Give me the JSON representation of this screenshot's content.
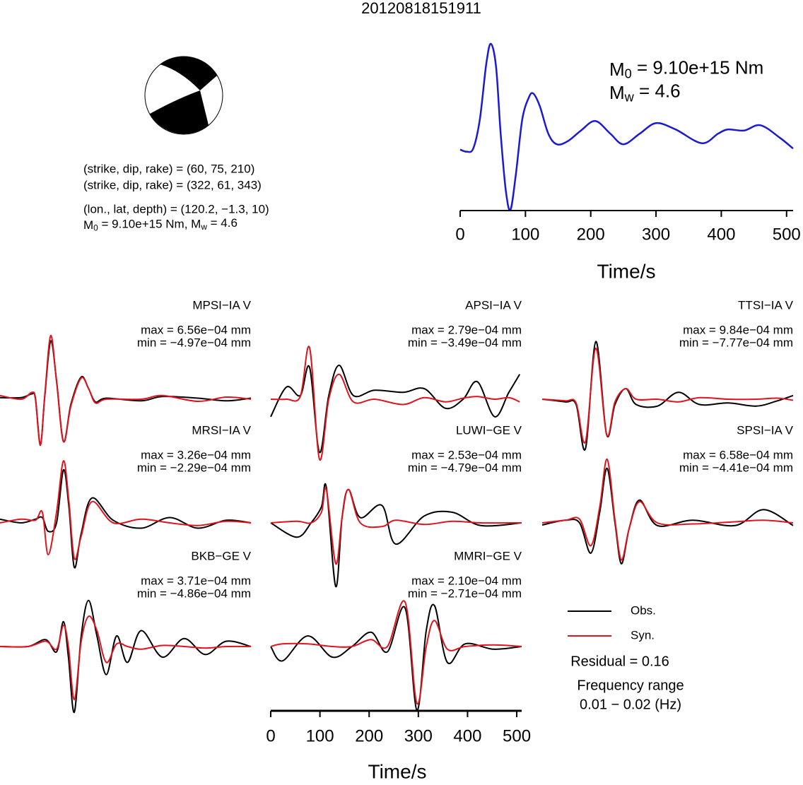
{
  "title": "20120818151911",
  "mechanism": {
    "planes": [
      "(strike, dip, rake) = (60, 75, 210)",
      "(strike, dip, rake) = (322, 61, 343)"
    ],
    "location": "(lon., lat, depth) = (120.2, −1.3, 10)",
    "moment": [
      "M",
      "0",
      " = 9.10e+15 Nm, M",
      "w",
      " = 4.6"
    ]
  },
  "chart_data": [
    {
      "type": "line",
      "annotation": [
        [
          "M",
          "0",
          " = 9.10e+15 Nm"
        ],
        [
          "M",
          "w",
          " = 4.6"
        ]
      ],
      "x": [
        0,
        10,
        20,
        30,
        40,
        47,
        55,
        62,
        70,
        77,
        85,
        95,
        105,
        112,
        122,
        135,
        148,
        165,
        185,
        207,
        230,
        250,
        275,
        300,
        330,
        370,
        395,
        410,
        435,
        460,
        490,
        510
      ],
      "series": [
        {
          "color": "#1a1ad6",
          "values": [
            0,
            -0.02,
            0.01,
            0.28,
            0.81,
            1.0,
            0.78,
            0.15,
            -0.39,
            -0.57,
            -0.25,
            0.28,
            0.49,
            0.53,
            0.41,
            0.15,
            0.05,
            0.08,
            0.18,
            0.27,
            0.15,
            0.05,
            0.15,
            0.25,
            0.19,
            0.06,
            0.15,
            0.19,
            0.18,
            0.23,
            0.11,
            0.01
          ]
        }
      ],
      "xlim": [
        0,
        510
      ],
      "ylim": [
        -0.57,
        1.0
      ],
      "xticks": [
        0,
        100,
        200,
        300,
        400,
        500
      ],
      "xlabel": "Time/s"
    },
    {
      "type": "waveform",
      "xlim": [
        0,
        510
      ],
      "xticks": [
        0,
        100,
        200,
        300,
        400,
        500
      ],
      "xlabel": "Time/s",
      "legend": [
        {
          "name": "Obs.",
          "color": "#000000"
        },
        {
          "name": "Syn.",
          "color": "#e0141e"
        }
      ],
      "residual": "Residual = 0.16",
      "frequency": [
        "Frequency range",
        "0.01 − 0.02 (Hz)"
      ],
      "panels": [
        {
          "name": "MPSI−IA V",
          "max": "max = 6.56e−04 mm",
          "min": "min = −4.97e−04 mm",
          "x": [
            0,
            43,
            65,
            72,
            82,
            91,
            103,
            115,
            129,
            144,
            165,
            180,
            194,
            216,
            287,
            330,
            402,
            460,
            510
          ],
          "obs": [
            0.03,
            0.03,
            0.1,
            0.02,
            -0.85,
            0.05,
            1.1,
            0.35,
            -0.8,
            -0.1,
            0.42,
            0.2,
            -0.05,
            0.02,
            -0.03,
            0.05,
            0.02,
            -0.03,
            0.02
          ],
          "syn": [
            0.07,
            0,
            0.13,
            0,
            -0.87,
            0.07,
            1.2,
            0.33,
            -0.8,
            -0.13,
            0.4,
            0.2,
            -0.07,
            0,
            0,
            0.07,
            -0.04,
            0.04,
            0
          ]
        },
        {
          "name": "APSI−IA V",
          "max": "max = 2.79e−04 mm",
          "min": "min = −3.49e−04 mm",
          "x": [
            0,
            32,
            60,
            79,
            99,
            118,
            139,
            168,
            211,
            269,
            312,
            355,
            391,
            420,
            455,
            484,
            506
          ],
          "obs": [
            -0.33,
            0.23,
            0.07,
            0.6,
            -1.0,
            0.07,
            0.64,
            0.07,
            0.17,
            0.13,
            0.2,
            -0.17,
            0,
            0.33,
            -0.33,
            0.13,
            0.47
          ],
          "syn": [
            0,
            0,
            0.05,
            0.97,
            -1.13,
            0,
            0.47,
            -0.05,
            0,
            -0.1,
            0.03,
            -0.05,
            0.02,
            0.05,
            0,
            0.03,
            -0.05
          ]
        },
        {
          "name": "TTSI−IA V",
          "max": "max = 9.84e−04 mm",
          "min": "min = −7.77e−04 mm",
          "x": [
            0,
            47,
            69,
            88,
            109,
            131,
            148,
            170,
            191,
            234,
            277,
            320,
            378,
            435,
            478,
            510
          ],
          "obs": [
            0,
            -0.05,
            -0.1,
            -0.93,
            1.09,
            -0.67,
            -0.1,
            0.2,
            -0.1,
            -0.13,
            0.13,
            -0.1,
            -0.07,
            -0.13,
            -0.03,
            0.07
          ],
          "syn": [
            0,
            -0.03,
            -0.07,
            -0.8,
            0.96,
            -0.67,
            -0.05,
            0.2,
            0,
            0,
            -0.05,
            0.03,
            0,
            0,
            0.02,
            -0.02
          ]
        },
        {
          "name": "MRSI−IA V",
          "max": "max = 3.26e−04 mm",
          "min": "min = −2.29e−04 mm",
          "x": [
            0,
            43,
            72,
            86,
            98,
            115,
            129,
            140,
            151,
            165,
            187,
            230,
            287,
            345,
            402,
            460,
            510
          ],
          "obs": [
            0.07,
            0,
            0.07,
            0.1,
            -0.16,
            0,
            1.0,
            0.3,
            -0.84,
            -0.2,
            0.47,
            0.05,
            -0.1,
            0.1,
            -0.1,
            0.05,
            0
          ],
          "syn": [
            0,
            0.07,
            0.05,
            0.2,
            -0.6,
            0.2,
            1.17,
            0.4,
            -0.67,
            -0.25,
            0.4,
            0,
            0.07,
            0,
            -0.05,
            0.03,
            0
          ]
        },
        {
          "name": "LUWI−GE V",
          "max": "max = 2.53e−04 mm",
          "min": "min = −4.79e−04 mm",
          "x": [
            0,
            53,
            82,
            103,
            113,
            132,
            145,
            158,
            182,
            226,
            254,
            312,
            369,
            427,
            510
          ],
          "obs": [
            0,
            -0.27,
            0,
            0.3,
            0.67,
            -1.2,
            0.1,
            0.63,
            0.1,
            0.33,
            -0.4,
            0.13,
            0.2,
            -0.05,
            0
          ],
          "syn": [
            0,
            0.03,
            0,
            0.2,
            0.63,
            -0.77,
            0.1,
            0.63,
            0,
            -0.07,
            0.05,
            -0.03,
            0.03,
            0,
            0
          ]
        },
        {
          "name": "SPSI−IA V",
          "max": "max = 6.58e−04 mm",
          "min": "min = −4.41e−04 mm",
          "x": [
            0,
            47,
            76,
            99,
            117,
            132,
            148,
            161,
            177,
            198,
            234,
            306,
            392,
            450,
            510
          ],
          "obs": [
            -0.04,
            0.05,
            0,
            -0.57,
            0.2,
            1.03,
            0,
            -0.77,
            -0.1,
            0.43,
            -0.05,
            0.05,
            -0.05,
            0.25,
            -0.05
          ],
          "syn": [
            0,
            0.05,
            0.07,
            -0.43,
            0.3,
            1.2,
            0.05,
            -0.7,
            -0.1,
            0.4,
            0,
            -0.02,
            0.02,
            0.05,
            0
          ]
        },
        {
          "name": "BKB−GE V",
          "max": "max = 3.71e−04 mm",
          "min": "min = −4.86e−04 mm",
          "x": [
            0,
            57,
            93,
            115,
            129,
            139,
            151,
            165,
            180,
            197,
            216,
            237,
            259,
            287,
            330,
            374,
            417,
            460,
            510
          ],
          "obs": [
            0,
            0,
            0.13,
            -0.1,
            0.47,
            -0.2,
            -1.24,
            0.2,
            0.87,
            0.2,
            -0.53,
            0.2,
            -0.3,
            0.3,
            -0.2,
            0.15,
            -0.15,
            0.1,
            0
          ],
          "syn": [
            0,
            0,
            0.1,
            -0.05,
            0.4,
            0,
            -1.0,
            0.1,
            0.57,
            0.3,
            -0.3,
            0.05,
            0,
            -0.05,
            0.02,
            0,
            -0.03,
            0,
            0
          ]
        },
        {
          "name": "MMRI−GE V",
          "max": "max = 2.10e−04 mm",
          "min": "min = −2.71e−04 mm",
          "x": [
            0,
            24,
            75,
            125,
            165,
            204,
            237,
            273,
            297,
            316,
            333,
            359,
            395,
            453,
            510
          ],
          "obs": [
            0,
            -0.27,
            0.2,
            -0.2,
            0,
            0.27,
            -0.1,
            0.73,
            -1.2,
            0.3,
            0.77,
            -0.3,
            0.05,
            -0.05,
            0
          ],
          "syn": [
            0,
            0.05,
            0.05,
            0,
            0,
            0.13,
            0,
            0.84,
            -1.07,
            0,
            0.49,
            -0.05,
            0,
            0.03,
            0
          ]
        }
      ]
    }
  ]
}
